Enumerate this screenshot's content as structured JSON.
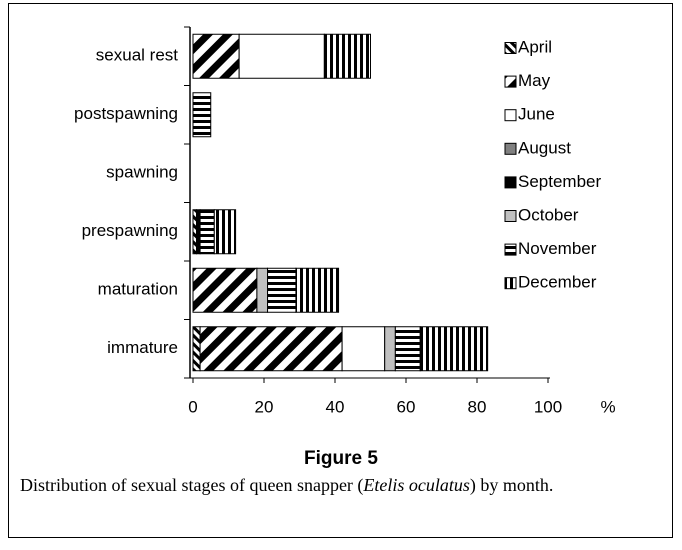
{
  "chart_data": {
    "type": "stacked-barh",
    "categories": [
      "immature",
      "maturation",
      "prespawning",
      "spawning",
      "postspawning",
      "sexual rest"
    ],
    "series": [
      {
        "name": "April",
        "color": "#000000",
        "pattern": "diag-up",
        "values": [
          2,
          0,
          1,
          0,
          0,
          0
        ]
      },
      {
        "name": "May",
        "color": "#000000",
        "pattern": "diag-down",
        "values": [
          40,
          18,
          0,
          0,
          0,
          13
        ]
      },
      {
        "name": "June",
        "color": "#ffffff",
        "pattern": "solid",
        "values": [
          12,
          0,
          0,
          0,
          0,
          24
        ]
      },
      {
        "name": "August",
        "color": "#808080",
        "pattern": "solid",
        "values": [
          0,
          0,
          0,
          0,
          0,
          0
        ]
      },
      {
        "name": "September",
        "color": "#000000",
        "pattern": "solid",
        "values": [
          0,
          0,
          1,
          0,
          0,
          0
        ]
      },
      {
        "name": "October",
        "color": "#c0c0c0",
        "pattern": "solid",
        "values": [
          3,
          3,
          0,
          0,
          0,
          0
        ]
      },
      {
        "name": "November",
        "color": "#000000",
        "pattern": "horizontal",
        "values": [
          7,
          8,
          4,
          0,
          5,
          0
        ]
      },
      {
        "name": "December",
        "color": "#000000",
        "pattern": "vertical",
        "values": [
          19,
          12,
          6,
          0,
          0,
          13
        ]
      }
    ],
    "xlim": [
      0,
      100
    ],
    "xticks": [
      0,
      20,
      40,
      60,
      80,
      100
    ],
    "xlabel": "%",
    "figure_label": "Figure 5",
    "caption": [
      "Distribution of sexual stages of queen snapper (",
      "Etelis oculatus",
      ") by month."
    ]
  }
}
